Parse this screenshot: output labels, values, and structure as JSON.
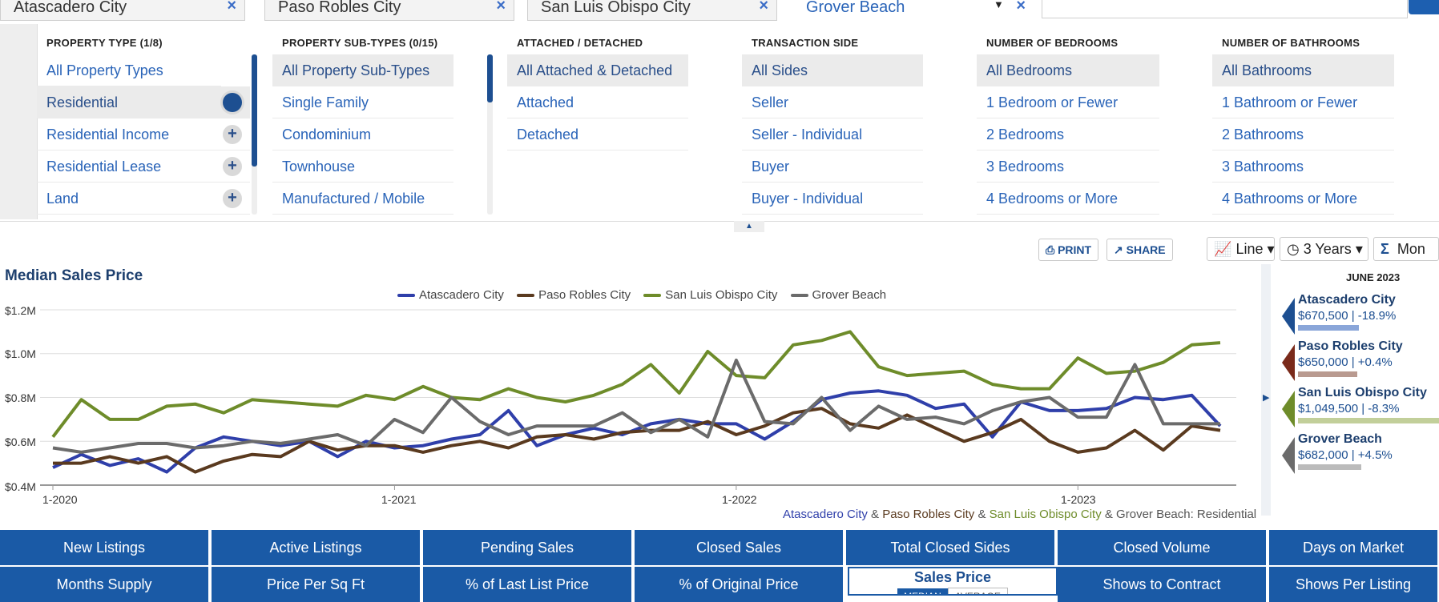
{
  "locations": [
    {
      "name": "Atascadero City",
      "close": "×"
    },
    {
      "name": "Paso Robles City",
      "close": "×"
    },
    {
      "name": "San Luis Obispo City",
      "close": "×"
    },
    {
      "name": "Grover Beach",
      "close": "×",
      "dropdown": "▼"
    }
  ],
  "filters": {
    "property_type": {
      "header": "PROPERTY TYPE (1/8)",
      "items": [
        "All Property Types",
        "Residential",
        "Residential Income",
        "Residential Lease",
        "Land"
      ],
      "selected": "Residential"
    },
    "sub_types": {
      "header": "PROPERTY SUB-TYPES (0/15)",
      "items": [
        "All Property Sub-Types",
        "Single Family",
        "Condominium",
        "Townhouse",
        "Manufactured / Mobile"
      ],
      "selected": "All Property Sub-Types"
    },
    "attached": {
      "header": "ATTACHED / DETACHED",
      "items": [
        "All Attached & Detached",
        "Attached",
        "Detached"
      ],
      "selected": "All Attached & Detached"
    },
    "transaction": {
      "header": "TRANSACTION SIDE",
      "items": [
        "All Sides",
        "Seller",
        "Seller - Individual",
        "Buyer",
        "Buyer - Individual"
      ],
      "selected": "All Sides"
    },
    "bedrooms": {
      "header": "NUMBER OF BEDROOMS",
      "items": [
        "All Bedrooms",
        "1 Bedroom or Fewer",
        "2 Bedrooms",
        "3 Bedrooms",
        "4 Bedrooms or More"
      ],
      "selected": "All Bedrooms"
    },
    "bathrooms": {
      "header": "NUMBER OF BATHROOMS",
      "items": [
        "All Bathrooms",
        "1 Bathroom or Fewer",
        "2 Bathrooms",
        "3 Bathrooms",
        "4 Bathrooms or More"
      ],
      "selected": "All Bathrooms"
    }
  },
  "toolbar": {
    "print": "PRINT",
    "share": "SHARE",
    "chart_type": "Line",
    "range": "3 Years",
    "stat": "Mon"
  },
  "chart_data": {
    "type": "line",
    "title": "Median Sales Price",
    "ylabel": "",
    "xlabel": "",
    "y_ticks": [
      "$1.2M",
      "$1.0M",
      "$0.8M",
      "$0.6M",
      "$0.4M"
    ],
    "ylim": [
      400000,
      1200000
    ],
    "x_ticks": [
      "1-2020",
      "1-2021",
      "1-2022",
      "1-2023"
    ],
    "x_start": "2020-01",
    "x_end": "2023-06",
    "series": [
      {
        "name": "Atascadero City",
        "color": "#2f3faa",
        "values": [
          480000,
          540000,
          490000,
          520000,
          460000,
          570000,
          620000,
          600000,
          580000,
          600000,
          530000,
          600000,
          570000,
          580000,
          610000,
          630000,
          740000,
          580000,
          630000,
          660000,
          630000,
          680000,
          700000,
          680000,
          680000,
          610000,
          690000,
          790000,
          820000,
          830000,
          810000,
          750000,
          770000,
          620000,
          780000,
          740000,
          740000,
          750000,
          800000,
          790000,
          810000,
          670000
        ]
      },
      {
        "name": "Paso Robles City",
        "color": "#5a3a1f",
        "values": [
          500000,
          500000,
          530000,
          500000,
          530000,
          460000,
          510000,
          540000,
          530000,
          600000,
          560000,
          580000,
          580000,
          550000,
          580000,
          600000,
          570000,
          620000,
          630000,
          610000,
          640000,
          650000,
          650000,
          690000,
          630000,
          670000,
          730000,
          750000,
          680000,
          660000,
          720000,
          660000,
          600000,
          640000,
          700000,
          600000,
          550000,
          570000,
          650000,
          560000,
          670000,
          650000
        ]
      },
      {
        "name": "San Luis Obispo City",
        "color": "#6e8c2a",
        "values": [
          620000,
          790000,
          700000,
          700000,
          760000,
          770000,
          730000,
          790000,
          780000,
          770000,
          760000,
          810000,
          790000,
          850000,
          800000,
          790000,
          840000,
          800000,
          780000,
          810000,
          860000,
          950000,
          820000,
          1010000,
          900000,
          890000,
          1040000,
          1060000,
          1100000,
          940000,
          900000,
          910000,
          920000,
          860000,
          840000,
          840000,
          980000,
          910000,
          920000,
          960000,
          1040000,
          1050000
        ]
      },
      {
        "name": "Grover Beach",
        "color": "#6b6b6b",
        "values": [
          570000,
          550000,
          570000,
          590000,
          590000,
          570000,
          580000,
          600000,
          590000,
          610000,
          630000,
          580000,
          700000,
          640000,
          800000,
          690000,
          630000,
          670000,
          670000,
          670000,
          730000,
          640000,
          700000,
          620000,
          970000,
          690000,
          680000,
          800000,
          650000,
          760000,
          700000,
          710000,
          680000,
          740000,
          780000,
          800000,
          710000,
          710000,
          950000,
          680000,
          680000,
          680000
        ]
      }
    ]
  },
  "caption": {
    "parts": [
      {
        "text": "Atascadero City",
        "color": "#2f3faa"
      },
      {
        "text": " & ",
        "color": "#555"
      },
      {
        "text": "Paso Robles City",
        "color": "#5a3a1f"
      },
      {
        "text": " & ",
        "color": "#555"
      },
      {
        "text": "San Luis Obispo City",
        "color": "#6e8c2a"
      },
      {
        "text": " & Grover Beach: Residential",
        "color": "#555"
      }
    ]
  },
  "summary": {
    "period": "JUNE 2023",
    "cards": [
      {
        "name": "Atascadero City",
        "value": "$670,500 | -18.9%",
        "color": "#1d4f91",
        "bar_color": "#8aa6d9",
        "bar_fraction": 0.43
      },
      {
        "name": "Paso Robles City",
        "value": "$650,000 | +0.4%",
        "color": "#7a2a1a",
        "bar_color": "#b99a90",
        "bar_fraction": 0.42
      },
      {
        "name": "San Luis Obispo City",
        "value": "$1,049,500 | -8.3%",
        "color": "#6e8c2a",
        "bar_color": "#c2cf9a",
        "bar_fraction": 1.0
      },
      {
        "name": "Grover Beach",
        "value": "$682,000 | +4.5%",
        "color": "#6b6b6b",
        "bar_color": "#bbbbbb",
        "bar_fraction": 0.45
      }
    ]
  },
  "metrics": {
    "row1": [
      "New Listings",
      "Active Listings",
      "Pending Sales",
      "Closed Sales",
      "Total Closed Sides",
      "Closed Volume",
      "Days on Market"
    ],
    "row2": [
      "Months Supply",
      "Price Per Sq Ft",
      "% of Last List Price",
      "% of Original Price",
      "Sales Price",
      "Shows to Contract",
      "Shows Per Listing"
    ],
    "active": "Sales Price",
    "active_toggle": [
      "MEDIAN",
      "AVERAGE"
    ]
  }
}
